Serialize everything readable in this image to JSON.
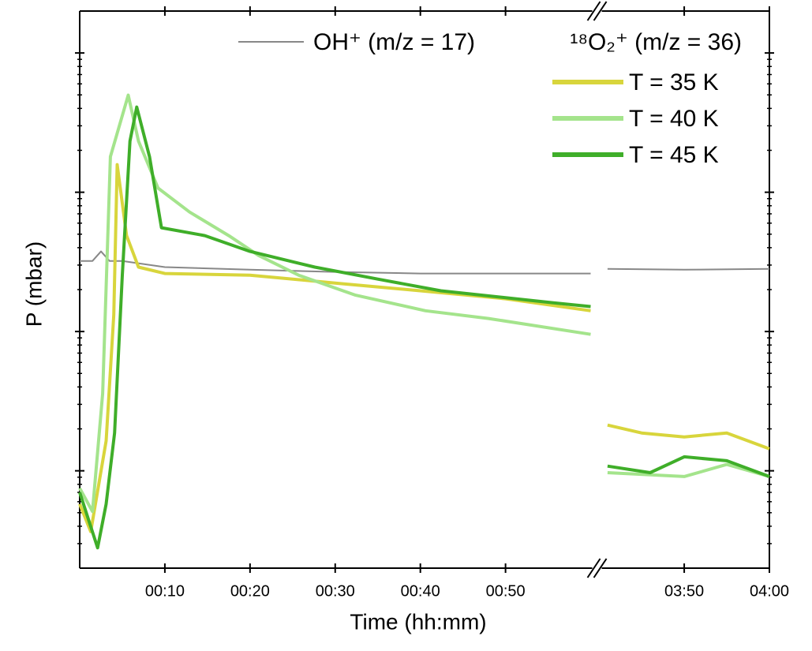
{
  "chart_data": {
    "type": "line",
    "x_label": "Time (hh:mm)",
    "y_label": "P (mbar)",
    "log_y": true,
    "xlim": [
      0,
      240
    ],
    "xbreak": [
      60,
      220.5
    ],
    "ylim": [
      0.2,
      2000
    ],
    "yticks": [
      1,
      10,
      100,
      1000
    ],
    "yminorticks": [
      0.3,
      0.4,
      0.5,
      0.6,
      0.7,
      0.8,
      0.9,
      2,
      3,
      4,
      5,
      6,
      7,
      8,
      9,
      20,
      30,
      40,
      50,
      60,
      70,
      80,
      90,
      200,
      300,
      400,
      500,
      600,
      700,
      800,
      900
    ],
    "xticks": [
      {
        "value": 10,
        "label": "00:10"
      },
      {
        "value": 20,
        "label": "00:20"
      },
      {
        "value": 30,
        "label": "00:30"
      },
      {
        "value": 40,
        "label": "00:40"
      },
      {
        "value": 50,
        "label": "00:50"
      },
      {
        "value": 230,
        "label": "03:50"
      },
      {
        "value": 240,
        "label": "04:00"
      }
    ],
    "legend_group_title": "¹⁸O₂⁺ (m/z = 36)",
    "series": [
      {
        "name": "OH⁺ (m/z = 17)",
        "color": "#888888",
        "width": 2,
        "x": [
          0,
          1.5,
          2.5,
          3.5,
          5,
          10,
          20,
          30,
          40,
          50,
          60,
          null,
          221,
          230,
          240
        ],
        "values": [
          32.1,
          32.1,
          37.6,
          32.1,
          32.1,
          29.0,
          27.8,
          26.8,
          26.1,
          26.1,
          26.1,
          null,
          28.2,
          27.8,
          28.2
        ]
      },
      {
        "name": "T = 35 K",
        "color": "#d8d53c",
        "width": 4,
        "x": [
          0,
          1.3,
          3.1,
          4,
          4.4,
          5.5,
          6.9,
          10,
          20,
          30,
          40,
          50,
          60,
          null,
          221,
          225,
          230,
          235,
          240
        ],
        "values": [
          0.578,
          0.366,
          1.64,
          13.2,
          158,
          48.8,
          29.0,
          26.1,
          25.4,
          22.3,
          19.6,
          17.2,
          14.1,
          null,
          2.13,
          1.87,
          1.75,
          1.87,
          1.44
        ]
      },
      {
        "name": "T = 40 K",
        "color": "#a4e48c",
        "width": 4,
        "x": [
          0,
          1.5,
          2.7,
          3.6,
          5.7,
          6.9,
          9.2,
          12.9,
          17.5,
          21,
          25.7,
          32.3,
          40.6,
          48,
          60,
          null,
          221,
          230,
          235,
          240
        ],
        "values": [
          0.75,
          0.51,
          3.59,
          180,
          498,
          233,
          107,
          72.1,
          48.8,
          35.2,
          25.4,
          18.3,
          14.1,
          12.4,
          9.55,
          null,
          0.97,
          0.91,
          1.11,
          0.91
        ]
      },
      {
        "name": "T = 45 K",
        "color": "#3fae29",
        "width": 4,
        "x": [
          0,
          2.1,
          3.1,
          4.1,
          5,
          5.9,
          6.7,
          8.2,
          9.6,
          14.7,
          20,
          27.6,
          35,
          42.4,
          55.5,
          60,
          null,
          221,
          226,
          230,
          235,
          240
        ],
        "values": [
          0.7,
          0.28,
          0.578,
          1.87,
          25.4,
          233,
          409,
          180,
          55.6,
          48.8,
          37.6,
          29.0,
          23.8,
          19.6,
          16.1,
          15.1,
          null,
          1.08,
          0.97,
          1.26,
          1.18,
          0.91
        ]
      }
    ]
  }
}
